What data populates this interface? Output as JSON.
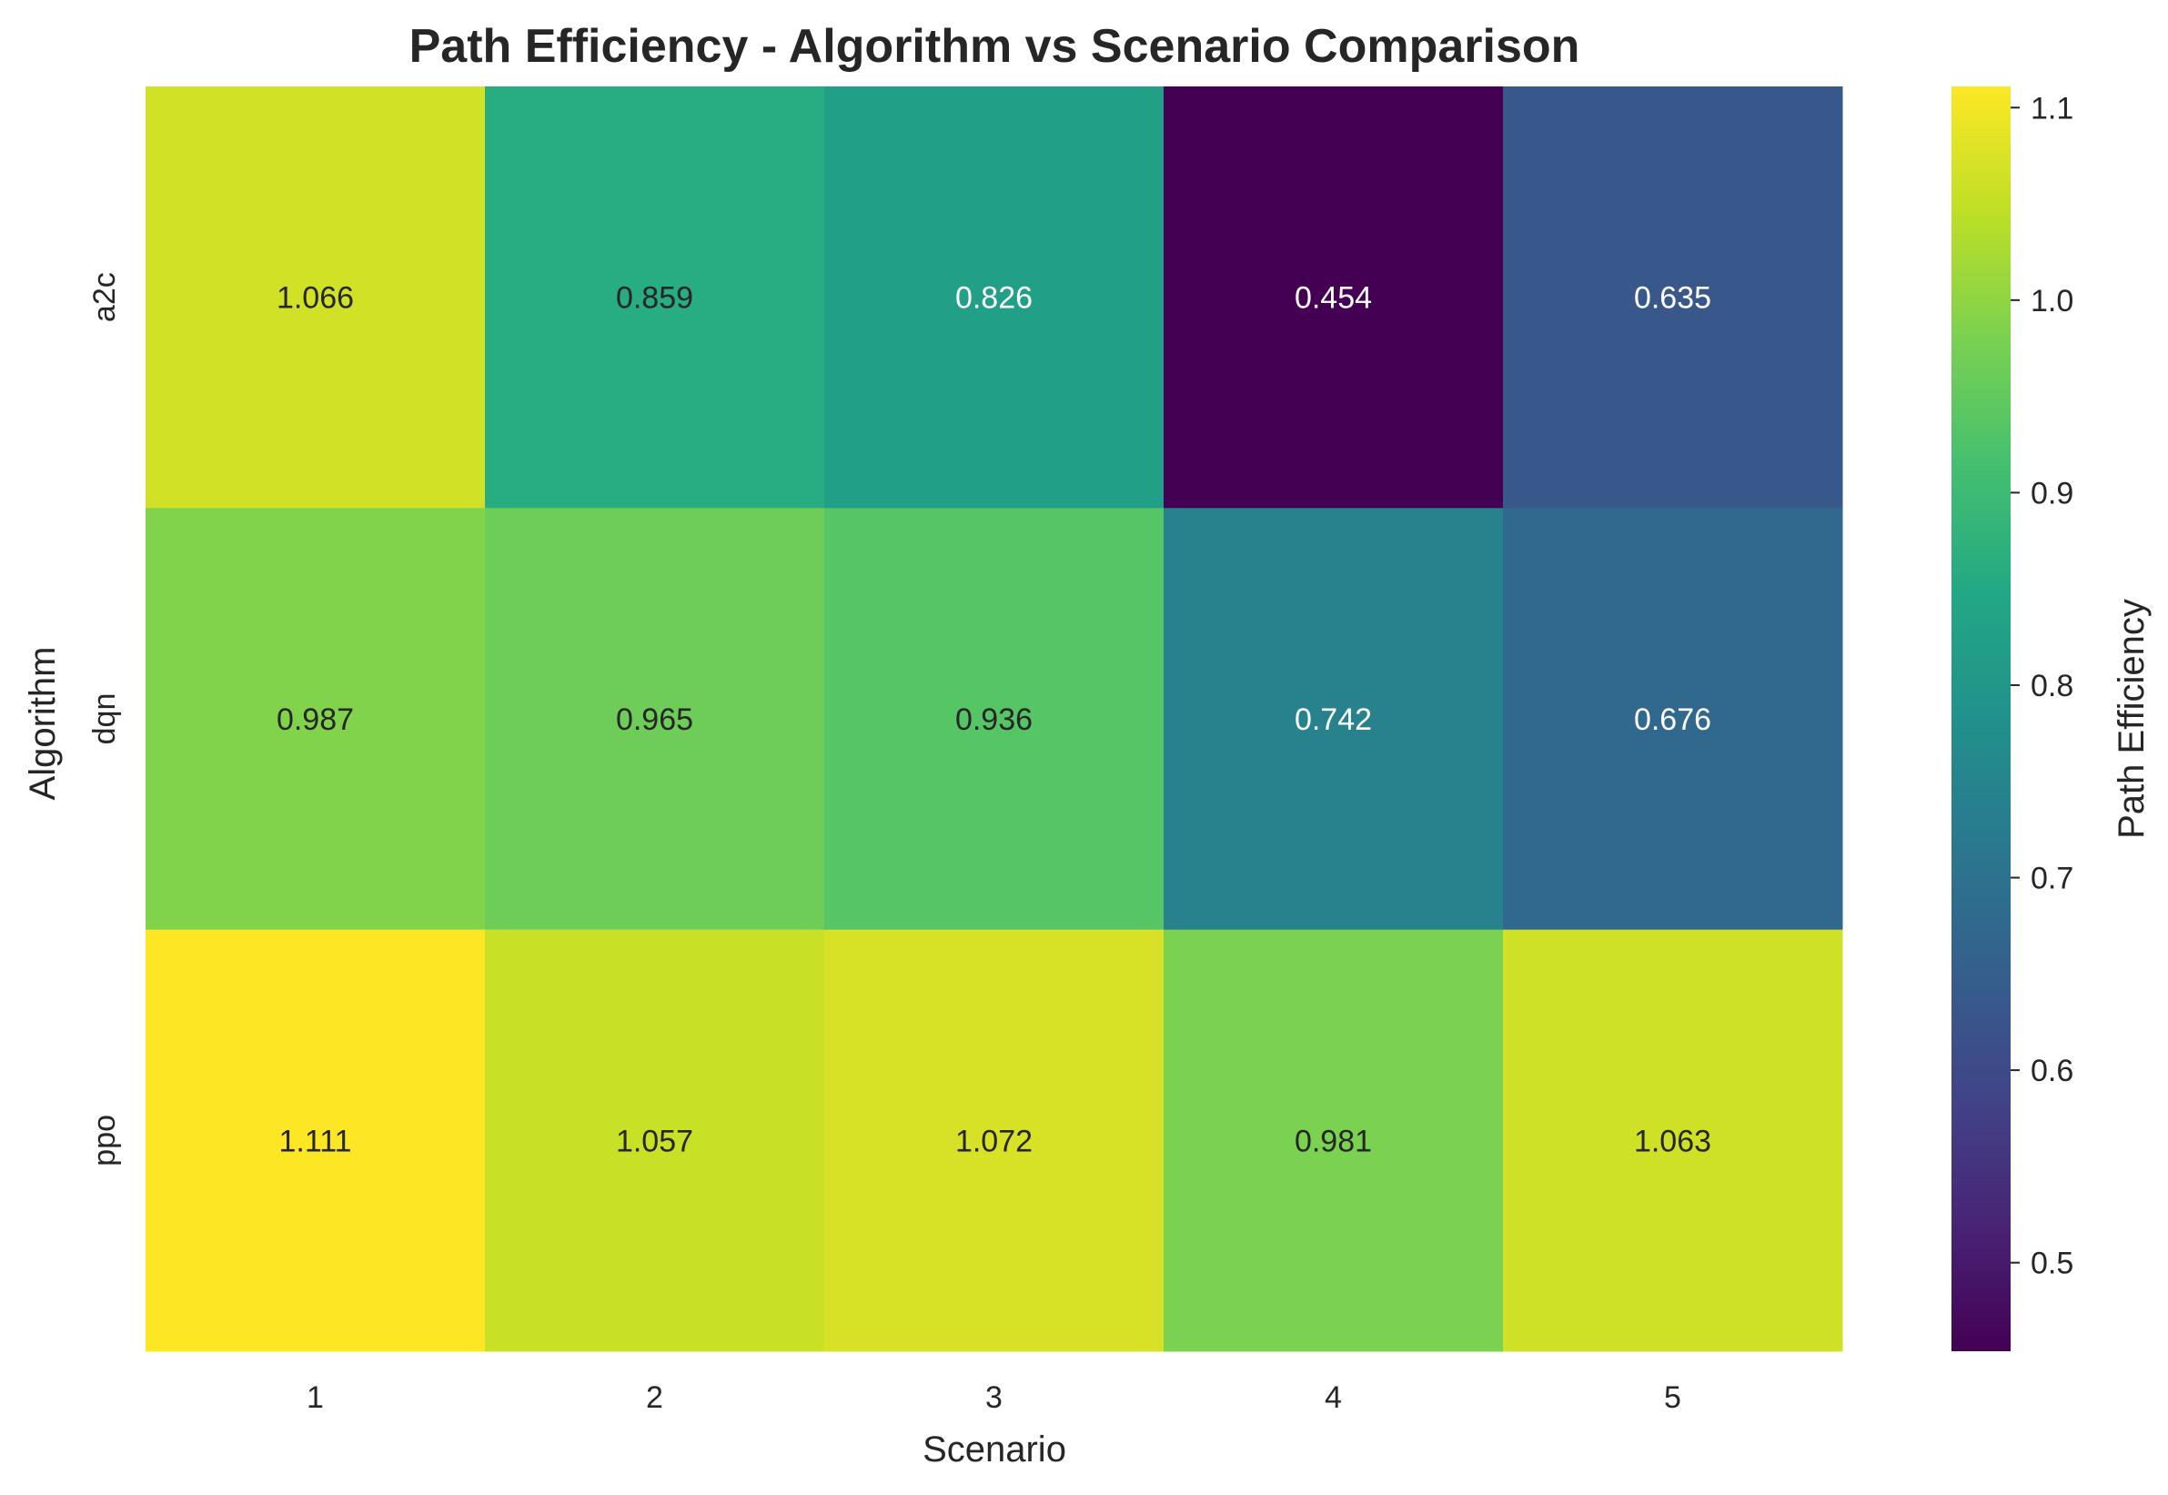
{
  "chart_data": {
    "type": "heatmap",
    "title": "Path Efficiency - Algorithm vs Scenario Comparison",
    "xlabel": "Scenario",
    "ylabel": "Algorithm",
    "x_categories": [
      "1",
      "2",
      "3",
      "4",
      "5"
    ],
    "y_categories": [
      "a2c",
      "dqn",
      "ppo"
    ],
    "values": [
      [
        1.066,
        0.859,
        0.826,
        0.454,
        0.635
      ],
      [
        0.987,
        0.965,
        0.936,
        0.742,
        0.676
      ],
      [
        1.111,
        1.057,
        1.072,
        0.981,
        1.063
      ]
    ],
    "cell_labels": [
      [
        "1.066",
        "0.859",
        "0.826",
        "0.454",
        "0.635"
      ],
      [
        "0.987",
        "0.965",
        "0.936",
        "0.742",
        "0.676"
      ],
      [
        "1.111",
        "1.057",
        "1.072",
        "0.981",
        "1.063"
      ]
    ],
    "colormap": "viridis",
    "colorbar": {
      "label": "Path Efficiency",
      "range": [
        0.454,
        1.111
      ],
      "ticks": [
        0.5,
        0.6,
        0.7,
        0.8,
        0.9,
        1.0,
        1.1
      ],
      "tick_labels": [
        "0.5",
        "0.6",
        "0.7",
        "0.8",
        "0.9",
        "1.0",
        "1.1"
      ]
    },
    "grid": false,
    "legend": "colorbar-right"
  }
}
